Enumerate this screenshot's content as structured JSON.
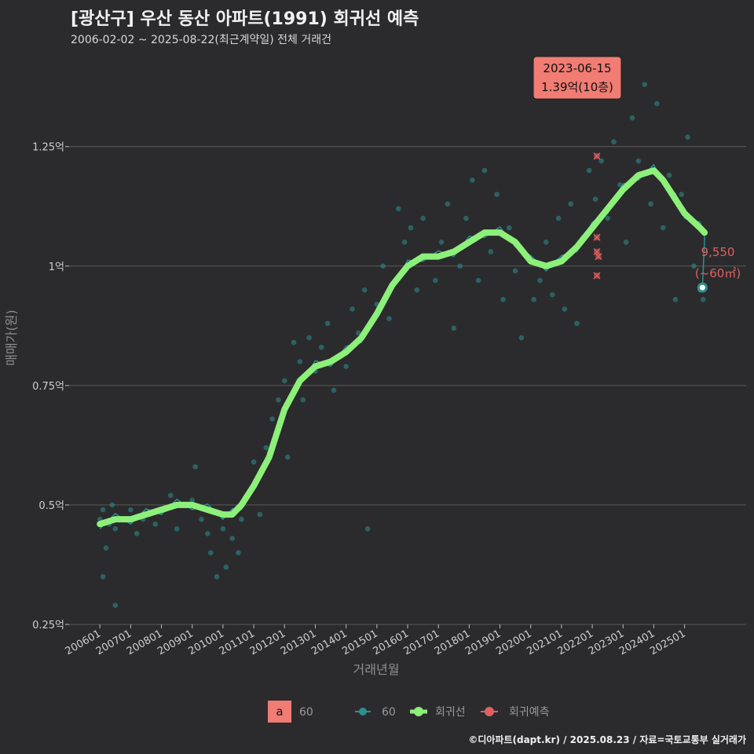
{
  "header": {
    "title": "[광산구] 우산 동산 아파트(1991) 회귀선 예측",
    "subtitle": "2006-02-02 ~ 2025-08-22(최근계약일) 전체 거래건"
  },
  "footer": {
    "credit": "©디아파트(dapt.kr) / 2025.08.23 / 자료=국토교통부 실거래가"
  },
  "colors": {
    "background": "#2b2b2d",
    "grid": "#5a5a5a",
    "scatter": "#2e8f8f",
    "regression": "#8df07a",
    "prediction": "#e06060",
    "callout": "#f07c73"
  },
  "chart_data": {
    "type": "scatter",
    "xlabel": "거래년월",
    "ylabel": "매매가(원)",
    "ylim": [
      0.25,
      1.45
    ],
    "y_unit": "억",
    "y_ticks": [
      {
        "value": 0.25,
        "label": "0.25억"
      },
      {
        "value": 0.5,
        "label": "0.5억"
      },
      {
        "value": 0.75,
        "label": "0.75억"
      },
      {
        "value": 1.0,
        "label": "1억"
      },
      {
        "value": 1.25,
        "label": "1.25억"
      }
    ],
    "x_range": [
      2005.0,
      2027.0
    ],
    "x_ticks": [
      "200601",
      "200701",
      "200801",
      "200901",
      "201001",
      "201101",
      "201201",
      "201301",
      "201401",
      "201501",
      "201601",
      "201701",
      "201801",
      "201901",
      "202001",
      "202101",
      "202201",
      "202301",
      "202401",
      "202501"
    ],
    "regression_line": [
      [
        2006.0,
        0.46
      ],
      [
        2006.5,
        0.47
      ],
      [
        2007.0,
        0.47
      ],
      [
        2007.5,
        0.48
      ],
      [
        2008.0,
        0.49
      ],
      [
        2008.5,
        0.5
      ],
      [
        2009.0,
        0.5
      ],
      [
        2009.5,
        0.49
      ],
      [
        2010.0,
        0.48
      ],
      [
        2010.3,
        0.48
      ],
      [
        2010.6,
        0.5
      ],
      [
        2011.0,
        0.54
      ],
      [
        2011.5,
        0.6
      ],
      [
        2012.0,
        0.7
      ],
      [
        2012.5,
        0.76
      ],
      [
        2013.0,
        0.79
      ],
      [
        2013.5,
        0.8
      ],
      [
        2014.0,
        0.82
      ],
      [
        2014.5,
        0.85
      ],
      [
        2015.0,
        0.9
      ],
      [
        2015.5,
        0.96
      ],
      [
        2016.0,
        1.0
      ],
      [
        2016.5,
        1.02
      ],
      [
        2017.0,
        1.02
      ],
      [
        2017.5,
        1.03
      ],
      [
        2018.0,
        1.05
      ],
      [
        2018.5,
        1.07
      ],
      [
        2019.0,
        1.07
      ],
      [
        2019.5,
        1.05
      ],
      [
        2020.0,
        1.01
      ],
      [
        2020.5,
        1.0
      ],
      [
        2021.0,
        1.01
      ],
      [
        2021.5,
        1.04
      ],
      [
        2022.0,
        1.08
      ],
      [
        2022.5,
        1.12
      ],
      [
        2023.0,
        1.16
      ],
      [
        2023.5,
        1.19
      ],
      [
        2024.0,
        1.2
      ],
      [
        2024.3,
        1.18
      ],
      [
        2024.7,
        1.14
      ],
      [
        2025.0,
        1.11
      ],
      [
        2025.5,
        1.08
      ],
      [
        2025.65,
        1.07
      ]
    ],
    "series": [
      {
        "name": "60",
        "color": "#2e8f8f",
        "points": [
          [
            2006.0,
            0.47
          ],
          [
            2006.1,
            0.49
          ],
          [
            2006.2,
            0.41
          ],
          [
            2006.3,
            0.46
          ],
          [
            2006.4,
            0.5
          ],
          [
            2006.5,
            0.45
          ],
          [
            2006.5,
            0.29
          ],
          [
            2006.1,
            0.35
          ],
          [
            2007.0,
            0.49
          ],
          [
            2007.2,
            0.44
          ],
          [
            2007.4,
            0.47
          ],
          [
            2007.6,
            0.48
          ],
          [
            2007.8,
            0.46
          ],
          [
            2008.1,
            0.49
          ],
          [
            2008.3,
            0.52
          ],
          [
            2008.5,
            0.45
          ],
          [
            2008.7,
            0.5
          ],
          [
            2009.0,
            0.51
          ],
          [
            2009.1,
            0.58
          ],
          [
            2009.3,
            0.47
          ],
          [
            2009.5,
            0.44
          ],
          [
            2009.6,
            0.4
          ],
          [
            2009.8,
            0.35
          ],
          [
            2010.0,
            0.45
          ],
          [
            2010.1,
            0.37
          ],
          [
            2010.3,
            0.43
          ],
          [
            2010.5,
            0.4
          ],
          [
            2010.6,
            0.47
          ],
          [
            2010.8,
            0.52
          ],
          [
            2011.0,
            0.59
          ],
          [
            2011.2,
            0.48
          ],
          [
            2011.4,
            0.62
          ],
          [
            2011.6,
            0.68
          ],
          [
            2011.8,
            0.72
          ],
          [
            2012.0,
            0.76
          ],
          [
            2012.1,
            0.6
          ],
          [
            2012.3,
            0.84
          ],
          [
            2012.5,
            0.8
          ],
          [
            2012.6,
            0.72
          ],
          [
            2012.8,
            0.85
          ],
          [
            2013.0,
            0.78
          ],
          [
            2013.2,
            0.83
          ],
          [
            2013.4,
            0.88
          ],
          [
            2013.6,
            0.74
          ],
          [
            2013.8,
            0.81
          ],
          [
            2014.0,
            0.79
          ],
          [
            2014.2,
            0.91
          ],
          [
            2014.4,
            0.86
          ],
          [
            2014.6,
            0.95
          ],
          [
            2014.7,
            0.45
          ],
          [
            2015.0,
            0.92
          ],
          [
            2015.2,
            1.0
          ],
          [
            2015.4,
            0.89
          ],
          [
            2015.6,
            0.97
          ],
          [
            2015.7,
            1.12
          ],
          [
            2015.9,
            1.05
          ],
          [
            2016.1,
            1.08
          ],
          [
            2016.3,
            0.95
          ],
          [
            2016.5,
            1.1
          ],
          [
            2016.7,
            1.02
          ],
          [
            2016.9,
            0.97
          ],
          [
            2017.1,
            1.05
          ],
          [
            2017.3,
            1.13
          ],
          [
            2017.5,
            0.87
          ],
          [
            2017.7,
            1.0
          ],
          [
            2017.9,
            1.1
          ],
          [
            2018.1,
            1.18
          ],
          [
            2018.3,
            0.97
          ],
          [
            2018.5,
            1.2
          ],
          [
            2018.7,
            1.03
          ],
          [
            2018.9,
            1.15
          ],
          [
            2019.1,
            0.93
          ],
          [
            2019.3,
            1.08
          ],
          [
            2019.5,
            0.99
          ],
          [
            2019.7,
            0.85
          ],
          [
            2019.9,
            1.02
          ],
          [
            2020.1,
            0.93
          ],
          [
            2020.3,
            0.97
          ],
          [
            2020.5,
            1.05
          ],
          [
            2020.7,
            0.94
          ],
          [
            2020.9,
            1.1
          ],
          [
            2021.1,
            0.91
          ],
          [
            2021.3,
            1.13
          ],
          [
            2021.5,
            0.88
          ],
          [
            2021.7,
            1.06
          ],
          [
            2021.9,
            1.2
          ],
          [
            2022.1,
            1.14
          ],
          [
            2022.3,
            1.22
          ],
          [
            2022.5,
            1.1
          ],
          [
            2022.7,
            1.26
          ],
          [
            2022.9,
            1.17
          ],
          [
            2023.1,
            1.05
          ],
          [
            2023.3,
            1.31
          ],
          [
            2023.5,
            1.22
          ],
          [
            2023.7,
            1.38
          ],
          [
            2023.9,
            1.13
          ],
          [
            2024.1,
            1.34
          ],
          [
            2024.3,
            1.08
          ],
          [
            2024.5,
            1.19
          ],
          [
            2024.7,
            0.93
          ],
          [
            2024.9,
            1.15
          ],
          [
            2025.1,
            1.27
          ],
          [
            2025.3,
            1.0
          ],
          [
            2025.5,
            0.95
          ],
          [
            2025.6,
            0.93
          ]
        ]
      },
      {
        "name": "회귀예측",
        "color": "#e06060",
        "points": [
          [
            2022.15,
            1.23
          ],
          [
            2022.15,
            1.06
          ],
          [
            2022.15,
            1.03
          ],
          [
            2022.2,
            1.02
          ],
          [
            2022.15,
            0.98
          ]
        ]
      }
    ],
    "callout": {
      "date": "2023-06-15",
      "value": "1.39억(10층)",
      "x": 2023.45,
      "y": 1.39
    },
    "last_point": {
      "x": 2025.58,
      "y": 0.955,
      "label_value": "9,550",
      "label_area": "(~60㎡)"
    },
    "legend": {
      "position": "bottom",
      "box_letter": "a",
      "items": [
        {
          "name": "60",
          "kind": "text"
        },
        {
          "name": "60",
          "kind": "point",
          "color": "#2e8f8f"
        },
        {
          "name": "회귀선",
          "kind": "line",
          "color": "#8df07a"
        },
        {
          "name": "회귀예측",
          "kind": "point",
          "color": "#e06060"
        }
      ]
    }
  }
}
